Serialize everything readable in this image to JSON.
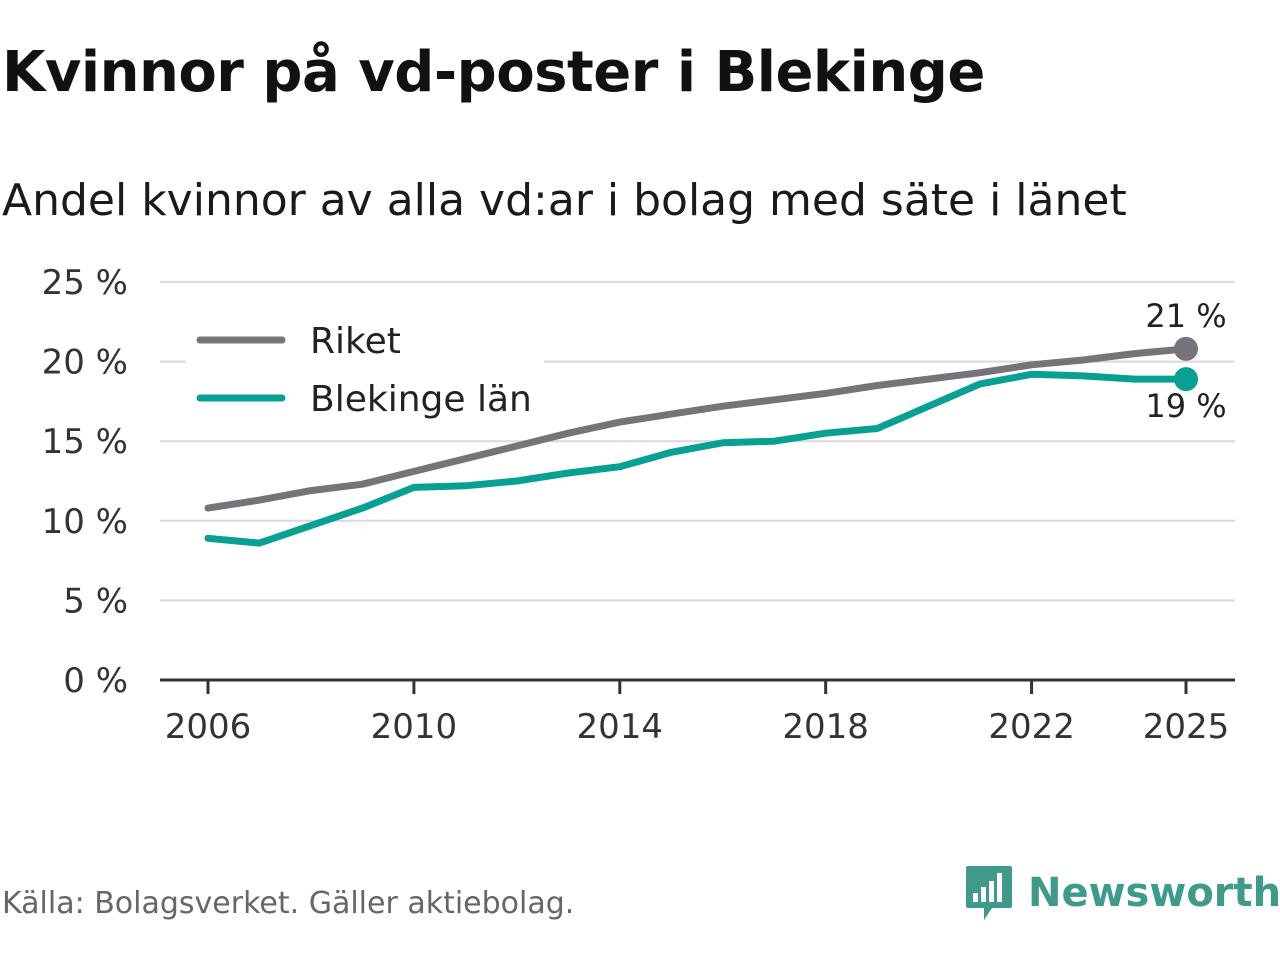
{
  "title": "Kvinnor på vd-poster i Blekinge",
  "subtitle": "Andel kvinnor av alla vd:ar i bolag med säte i länet",
  "source": "Källa: Bolagsverket. Gäller aktiebolag.",
  "brand": {
    "name": "Newsworthy",
    "icon": "newsworthy-logo-icon",
    "color": "#3f9a8b"
  },
  "chart_data": {
    "type": "line",
    "title": "Kvinnor på vd-poster i Blekinge",
    "xlabel": "",
    "ylabel": "",
    "ylim": [
      0,
      25
    ],
    "xlim": [
      2006,
      2025
    ],
    "y_ticks": [
      {
        "value": 0,
        "label": "0 %"
      },
      {
        "value": 5,
        "label": "5 %"
      },
      {
        "value": 10,
        "label": "10 %"
      },
      {
        "value": 15,
        "label": "15 %"
      },
      {
        "value": 20,
        "label": "20 %"
      },
      {
        "value": 25,
        "label": "25 %"
      }
    ],
    "x_ticks": [
      {
        "value": 2006,
        "label": "2006"
      },
      {
        "value": 2010,
        "label": "2010"
      },
      {
        "value": 2014,
        "label": "2014"
      },
      {
        "value": 2018,
        "label": "2018"
      },
      {
        "value": 2022,
        "label": "2022"
      },
      {
        "value": 2025,
        "label": "2025"
      }
    ],
    "grid": true,
    "legend_position": "top-left",
    "x": [
      2006,
      2007,
      2008,
      2009,
      2010,
      2011,
      2012,
      2013,
      2014,
      2015,
      2016,
      2017,
      2018,
      2019,
      2020,
      2021,
      2022,
      2023,
      2024,
      2025
    ],
    "series": [
      {
        "name": "Riket",
        "color": "#76737b",
        "values": [
          10.8,
          11.3,
          11.9,
          12.3,
          13.1,
          13.9,
          14.7,
          15.5,
          16.2,
          16.7,
          17.2,
          17.6,
          18.0,
          18.5,
          18.9,
          19.3,
          19.8,
          20.1,
          20.5,
          20.8
        ],
        "end_label": "21 %",
        "end_label_position": "above"
      },
      {
        "name": "Blekinge län",
        "color": "#09a094",
        "values": [
          8.9,
          8.6,
          9.7,
          10.8,
          12.1,
          12.2,
          12.5,
          13.0,
          13.4,
          14.3,
          14.9,
          15.0,
          15.5,
          15.8,
          17.2,
          18.6,
          19.2,
          19.1,
          18.9,
          18.9
        ],
        "end_label": "19 %",
        "end_label_position": "below"
      }
    ]
  }
}
